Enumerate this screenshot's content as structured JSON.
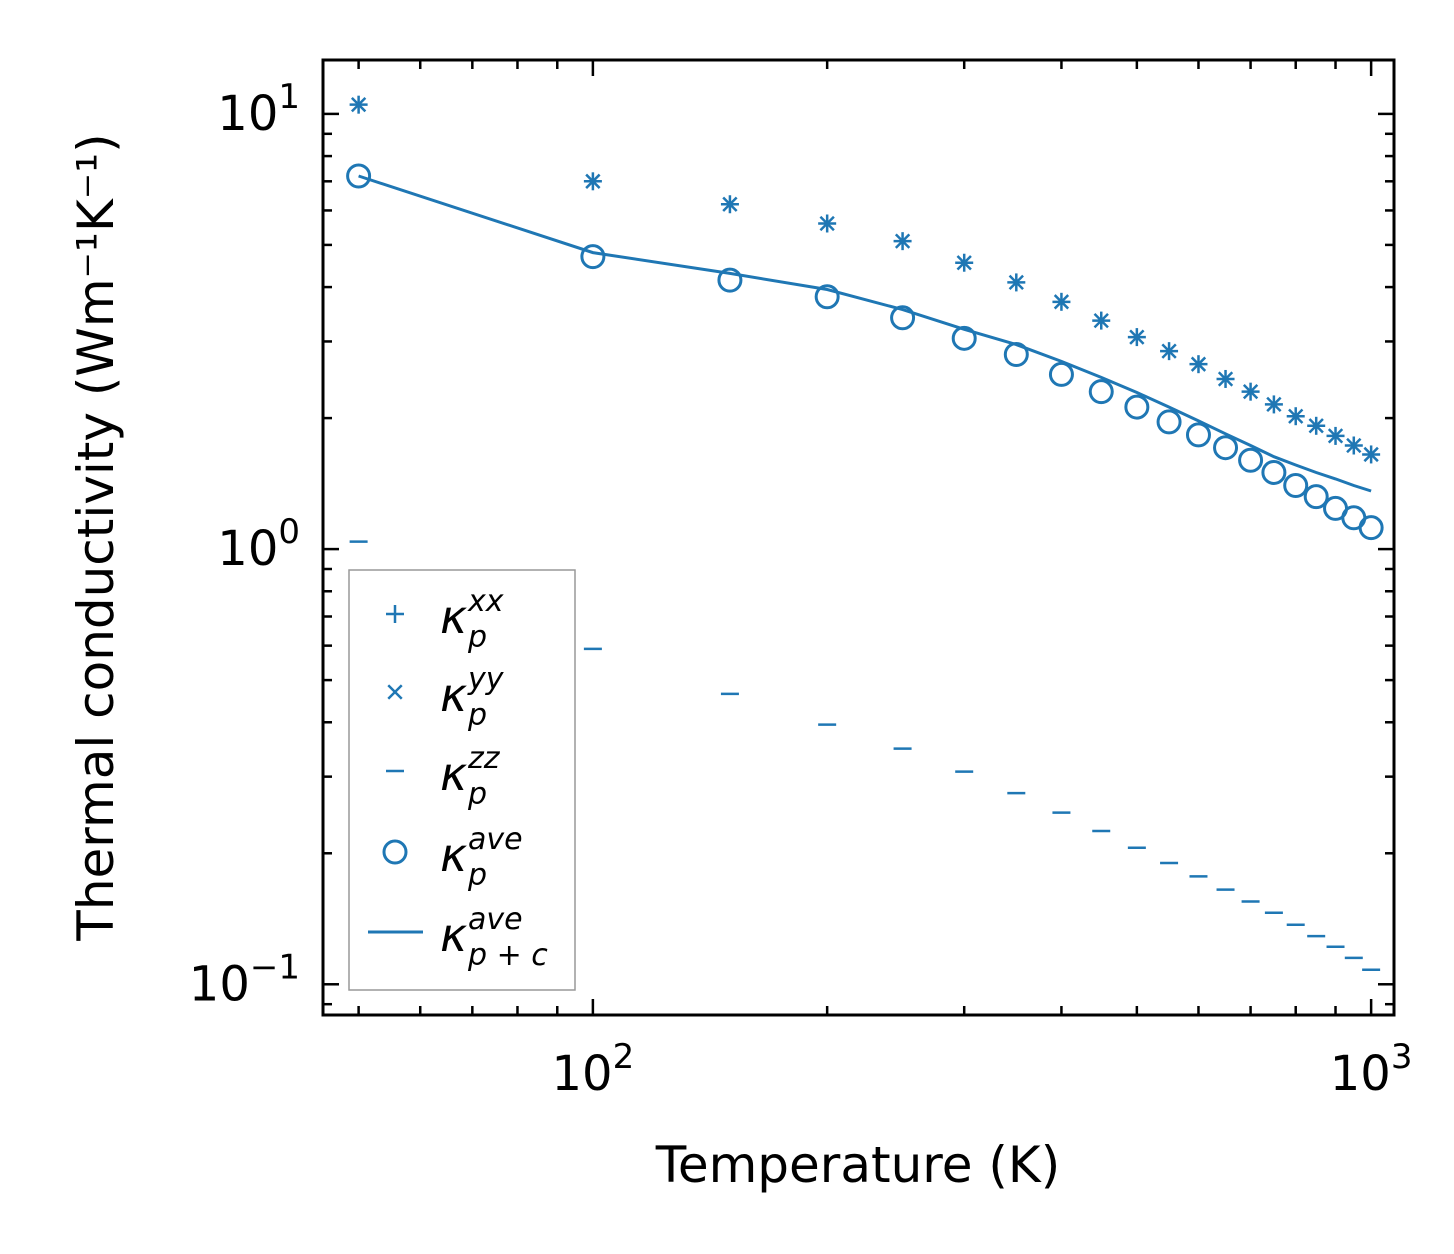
{
  "chart_data": {
    "type": "scatter",
    "xlabel": "Temperature (K)",
    "ylabel": "Thermal conductivity (Wm⁻¹K⁻¹)",
    "xscale": "log",
    "yscale": "log",
    "xlim": [
      45,
      1070
    ],
    "ylim": [
      0.085,
      13.3
    ],
    "xticks": [
      {
        "value": 100,
        "base": "10",
        "exp": "2"
      },
      {
        "value": 1000,
        "base": "10",
        "exp": "3"
      }
    ],
    "yticks": [
      {
        "value": 0.1,
        "base": "10",
        "exp": "−1"
      },
      {
        "value": 1,
        "base": "10",
        "exp": "0"
      },
      {
        "value": 10,
        "base": "10",
        "exp": "1"
      }
    ],
    "color": "#1f77b4",
    "x": [
      50,
      100,
      150,
      200,
      250,
      300,
      350,
      400,
      450,
      500,
      550,
      600,
      650,
      700,
      750,
      800,
      850,
      900,
      950,
      1000
    ],
    "series": [
      {
        "name": "kp_xx",
        "marker": "+",
        "values": [
          10.5,
          7.0,
          6.2,
          5.6,
          5.1,
          4.55,
          4.1,
          3.7,
          3.35,
          3.07,
          2.85,
          2.66,
          2.46,
          2.3,
          2.15,
          2.02,
          1.92,
          1.82,
          1.73,
          1.65
        ]
      },
      {
        "name": "kp_yy",
        "marker": "x",
        "values": [
          10.5,
          7.0,
          6.2,
          5.6,
          5.1,
          4.55,
          4.1,
          3.7,
          3.35,
          3.07,
          2.85,
          2.66,
          2.46,
          2.3,
          2.15,
          2.02,
          1.92,
          1.82,
          1.73,
          1.65
        ]
      },
      {
        "name": "kp_zz",
        "marker": "_",
        "values": [
          1.04,
          0.59,
          0.465,
          0.395,
          0.348,
          0.308,
          0.275,
          0.248,
          0.225,
          0.206,
          0.19,
          0.177,
          0.165,
          0.155,
          0.146,
          0.137,
          0.129,
          0.122,
          0.115,
          0.108
        ]
      },
      {
        "name": "kp_ave",
        "marker": "o",
        "values": [
          7.2,
          4.7,
          4.15,
          3.8,
          3.4,
          3.05,
          2.8,
          2.52,
          2.3,
          2.12,
          1.96,
          1.83,
          1.71,
          1.6,
          1.5,
          1.4,
          1.32,
          1.24,
          1.18,
          1.12
        ]
      },
      {
        "name": "kpc_ave",
        "marker": "line",
        "values": [
          7.2,
          4.8,
          4.3,
          3.95,
          3.55,
          3.2,
          2.95,
          2.7,
          2.48,
          2.29,
          2.12,
          1.97,
          1.84,
          1.73,
          1.63,
          1.56,
          1.5,
          1.45,
          1.4,
          1.36
        ]
      }
    ],
    "legend": {
      "placement": "lower-left",
      "entries": [
        {
          "series": "kp_xx",
          "base": "κ",
          "sub": "p",
          "sup": "xx"
        },
        {
          "series": "kp_yy",
          "base": "κ",
          "sub": "p",
          "sup": "yy"
        },
        {
          "series": "kp_zz",
          "base": "κ",
          "sub": "p",
          "sup": "zz"
        },
        {
          "series": "kp_ave",
          "base": "κ",
          "sub": "p",
          "sup": "ave"
        },
        {
          "series": "kpc_ave",
          "base": "κ",
          "sub": "p + c",
          "sup": "ave"
        }
      ]
    }
  }
}
